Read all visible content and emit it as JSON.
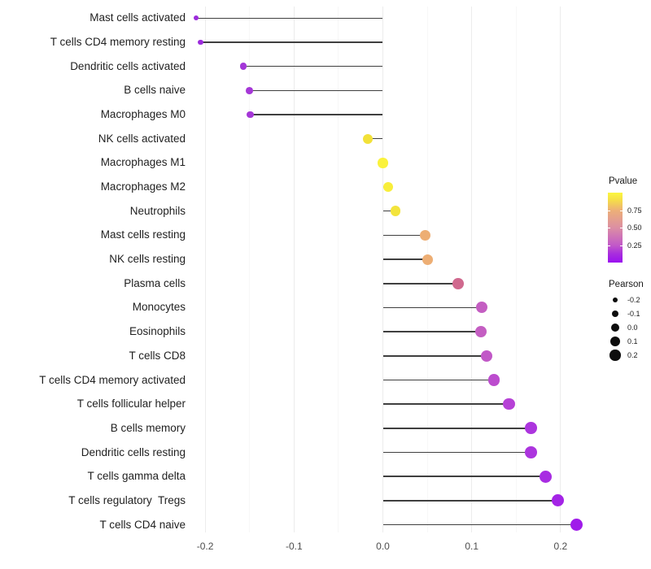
{
  "chart_data": {
    "type": "lollipop",
    "orientation": "horizontal",
    "title": "",
    "xlabel": "",
    "ylabel": "",
    "xlim": [
      -0.235,
      0.25
    ],
    "grid": "vertical-major-and-minor",
    "x_ticks": [
      -0.2,
      -0.1,
      0.0,
      0.1,
      0.2
    ],
    "x_tick_labels": [
      "-0.2",
      "-0.1",
      "0.0",
      "0.1",
      "0.2"
    ],
    "x_minor_ticks": [
      -0.15,
      -0.05,
      0.05,
      0.15
    ],
    "stem_color": "#3f3f3f",
    "rows": [
      {
        "label": "Mast cells activated",
        "pearson": -0.21,
        "color": "#9c2bdc"
      },
      {
        "label": "T cells CD4 memory resting",
        "pearson": -0.205,
        "color": "#9c2bdc"
      },
      {
        "label": "Dendritic cells activated",
        "pearson": -0.157,
        "color": "#a336d8"
      },
      {
        "label": "B cells naive",
        "pearson": -0.15,
        "color": "#a537d7"
      },
      {
        "label": "Macrophages M0",
        "pearson": -0.149,
        "color": "#a537d7"
      },
      {
        "label": "NK cells activated",
        "pearson": -0.017,
        "color": "#f2e138"
      },
      {
        "label": "Macrophages M1",
        "pearson": 0.0,
        "color": "#faf23c"
      },
      {
        "label": "Macrophages M2",
        "pearson": 0.006,
        "color": "#f8ee3b"
      },
      {
        "label": "Neutrophils",
        "pearson": 0.014,
        "color": "#f3e43c"
      },
      {
        "label": "Mast cells resting",
        "pearson": 0.048,
        "color": "#edae74"
      },
      {
        "label": "NK cells resting",
        "pearson": 0.05,
        "color": "#edae74"
      },
      {
        "label": "Plasma cells",
        "pearson": 0.085,
        "color": "#d0698e"
      },
      {
        "label": "Monocytes",
        "pearson": 0.111,
        "color": "#c45ec2"
      },
      {
        "label": "Eosinophils",
        "pearson": 0.11,
        "color": "#c45ec2"
      },
      {
        "label": "T cells CD8",
        "pearson": 0.117,
        "color": "#c158c7"
      },
      {
        "label": "T cells CD4 memory activated",
        "pearson": 0.125,
        "color": "#bc4cce"
      },
      {
        "label": "T cells follicular helper",
        "pearson": 0.142,
        "color": "#b641d6"
      },
      {
        "label": "B cells memory",
        "pearson": 0.167,
        "color": "#ac35de"
      },
      {
        "label": "Dendritic cells resting",
        "pearson": 0.167,
        "color": "#ac35de"
      },
      {
        "label": "T cells gamma delta",
        "pearson": 0.183,
        "color": "#a82ce2"
      },
      {
        "label": "T cells regulatory  Tregs",
        "pearson": 0.197,
        "color": "#a424e6"
      },
      {
        "label": "T cells CD4 naive",
        "pearson": 0.218,
        "color": "#a01bea"
      }
    ],
    "legend": {
      "pvalue": {
        "title": "Pvalue",
        "tick_labels": [
          "0.75",
          "0.50",
          "0.25"
        ],
        "tick_values": [
          0.75,
          0.5,
          0.25
        ],
        "gradient_stops": [
          {
            "t": 0.0,
            "color": "#9b10f0"
          },
          {
            "t": 0.12,
            "color": "#a72cde"
          },
          {
            "t": 0.25,
            "color": "#c25ac8"
          },
          {
            "t": 0.5,
            "color": "#dc8fa3"
          },
          {
            "t": 0.75,
            "color": "#edb077"
          },
          {
            "t": 0.9,
            "color": "#f6e046"
          },
          {
            "t": 1.0,
            "color": "#fbf63f"
          }
        ]
      },
      "pearson": {
        "title": "Pearson",
        "item_values": [
          -0.2,
          -0.1,
          0.0,
          0.1,
          0.2
        ],
        "item_labels": [
          "-0.2",
          "-0.1",
          "0.0",
          "0.1",
          "0.2"
        ],
        "dot_color": "#0d0d0d"
      }
    }
  }
}
